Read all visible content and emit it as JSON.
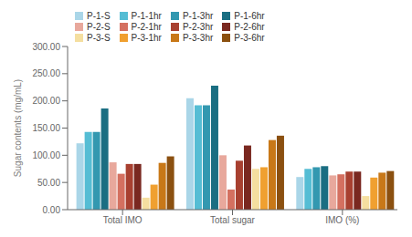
{
  "chart_data": {
    "type": "bar",
    "categories": [
      "Total IMO",
      "Total sugar",
      "IMO (%)"
    ],
    "series": [
      {
        "name": "P-1-S",
        "color": "#aad6e8",
        "values": [
          122,
          205,
          60
        ]
      },
      {
        "name": "P-1-1hr",
        "color": "#55bdd4",
        "values": [
          143,
          192,
          75
        ]
      },
      {
        "name": "P-1-3hr",
        "color": "#3398b0",
        "values": [
          143,
          192,
          78
        ]
      },
      {
        "name": "P-1-6hr",
        "color": "#1a6e82",
        "values": [
          186,
          228,
          80
        ]
      },
      {
        "name": "P-2-S",
        "color": "#e8a89c",
        "values": [
          87,
          100,
          63
        ]
      },
      {
        "name": "P-2-1hr",
        "color": "#d47060",
        "values": [
          66,
          37,
          65
        ]
      },
      {
        "name": "P-2-3hr",
        "color": "#a84030",
        "values": [
          84,
          90,
          70
        ]
      },
      {
        "name": "P-2-6hr",
        "color": "#7a2820",
        "values": [
          84,
          118,
          70
        ]
      },
      {
        "name": "P-3-S",
        "color": "#f5dfa0",
        "values": [
          22,
          75,
          25
        ]
      },
      {
        "name": "P-3-1hr",
        "color": "#f0a030",
        "values": [
          46,
          78,
          59
        ]
      },
      {
        "name": "P-3-3hr",
        "color": "#c87818",
        "values": [
          86,
          128,
          68
        ]
      },
      {
        "name": "P-3-6hr",
        "color": "#8b5010",
        "values": [
          98,
          136,
          71
        ]
      }
    ],
    "ylabel": "Sugar contents (mg/mL)",
    "ylim": [
      0,
      300
    ],
    "yticks": [
      {
        "value": 0,
        "label": "0.00"
      },
      {
        "value": 50,
        "label": "50.00"
      },
      {
        "value": 100,
        "label": "100.00"
      },
      {
        "value": 150,
        "label": "150.00"
      },
      {
        "value": 200,
        "label": "200.00"
      },
      {
        "value": 250,
        "label": "250.00"
      },
      {
        "value": 300,
        "label": "300.00"
      }
    ],
    "legend": "upper left",
    "grid": false
  }
}
